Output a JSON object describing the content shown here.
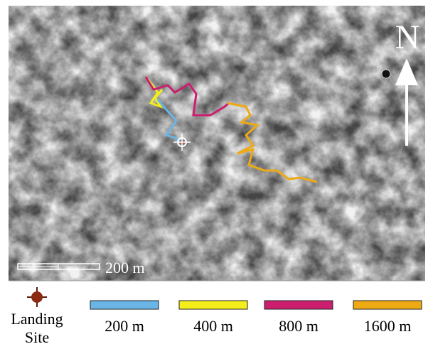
{
  "map": {
    "north_label": "N",
    "scale_bar_label": "200 m"
  },
  "legend": {
    "landing_site": {
      "line1": "Landing",
      "line2": "Site"
    },
    "items": [
      {
        "label": "200 m",
        "color": "#6ab4e6"
      },
      {
        "label": "400 m",
        "color": "#f4ee1a"
      },
      {
        "label": "800 m",
        "color": "#cc1e6e"
      },
      {
        "label": "1600 m",
        "color": "#eeaa14"
      }
    ]
  }
}
